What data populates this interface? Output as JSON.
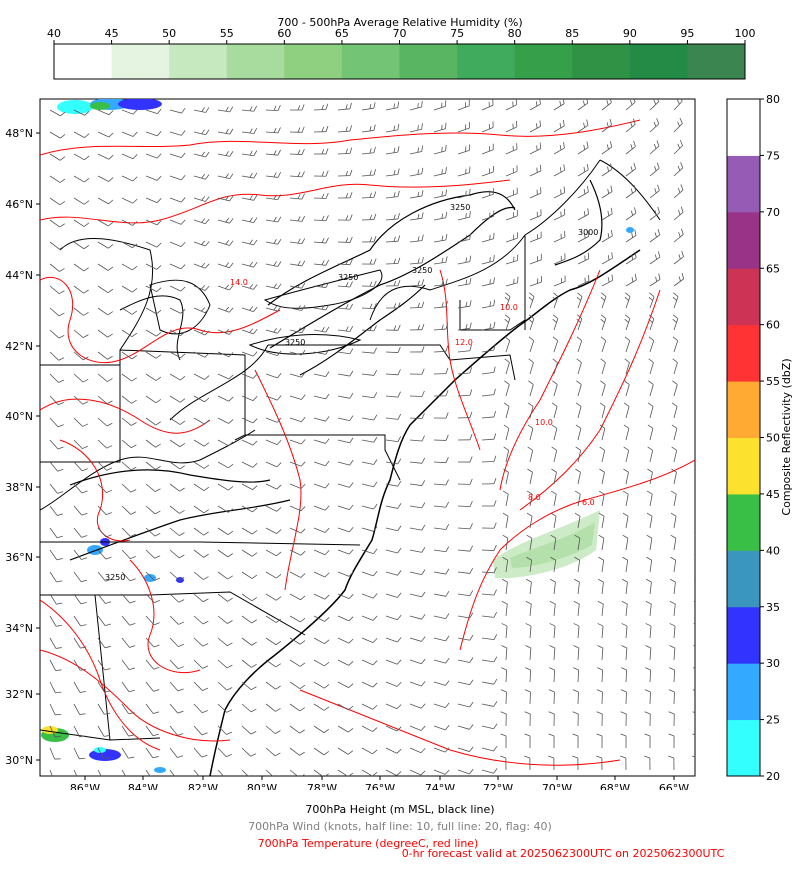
{
  "top_colorbar": {
    "title": "700 - 500hPa Average Relative Humidity (%)",
    "ticks": [
      "40",
      "45",
      "50",
      "55",
      "60",
      "65",
      "70",
      "75",
      "80",
      "85",
      "90",
      "95",
      "100"
    ],
    "colors": [
      "#ffffff",
      "#e5f4e0",
      "#c7e9c0",
      "#a8dc9f",
      "#8ecf80",
      "#74c476",
      "#5ab562",
      "#41ab5d",
      "#35a049",
      "#2f9245",
      "#238b45",
      "#3a8550",
      "#3b7250"
    ]
  },
  "right_colorbar": {
    "label": "Composite Reflectivity (dbZ)",
    "ticks": [
      "20",
      "25",
      "30",
      "35",
      "40",
      "45",
      "50",
      "55",
      "60",
      "65",
      "70",
      "75",
      "80"
    ],
    "colors": [
      "#33ffff",
      "#33aaff",
      "#3333ff",
      "#3a96be",
      "#39bf46",
      "#fde12f",
      "#ffaa33",
      "#ff3333",
      "#cc3355",
      "#993388",
      "#955bb5",
      "#ffffff"
    ]
  },
  "map": {
    "lat_labels": [
      "48°N",
      "46°N",
      "44°N",
      "42°N",
      "40°N",
      "38°N",
      "36°N",
      "34°N",
      "32°N",
      "30°N"
    ],
    "lon_labels": [
      "86°W",
      "84°W",
      "82°W",
      "80°W",
      "78°W",
      "76°W",
      "74°W",
      "72°W",
      "70°W",
      "68°W",
      "66°W"
    ],
    "height_labels": [
      "3250",
      "3250",
      "3250",
      "3250",
      "3250",
      "3000"
    ],
    "temp_labels": [
      "10.0",
      "12.0",
      "14.0",
      "10.0",
      "8.0",
      "6.0"
    ]
  },
  "captions": {
    "height": "700hPa Height (m MSL, black line)",
    "wind": "700hPa Wind (knots, half line: 10, full line: 20, flag: 40)",
    "temp": "700hPa Temperature (degreeC, red line)",
    "valid": "0-hr forecast valid at 2025062300UTC on 2025062300UTC"
  },
  "colors": {
    "height_line": "#000000",
    "temp_line": "#ff0000",
    "wind": "#555555",
    "axis": "#000000"
  }
}
